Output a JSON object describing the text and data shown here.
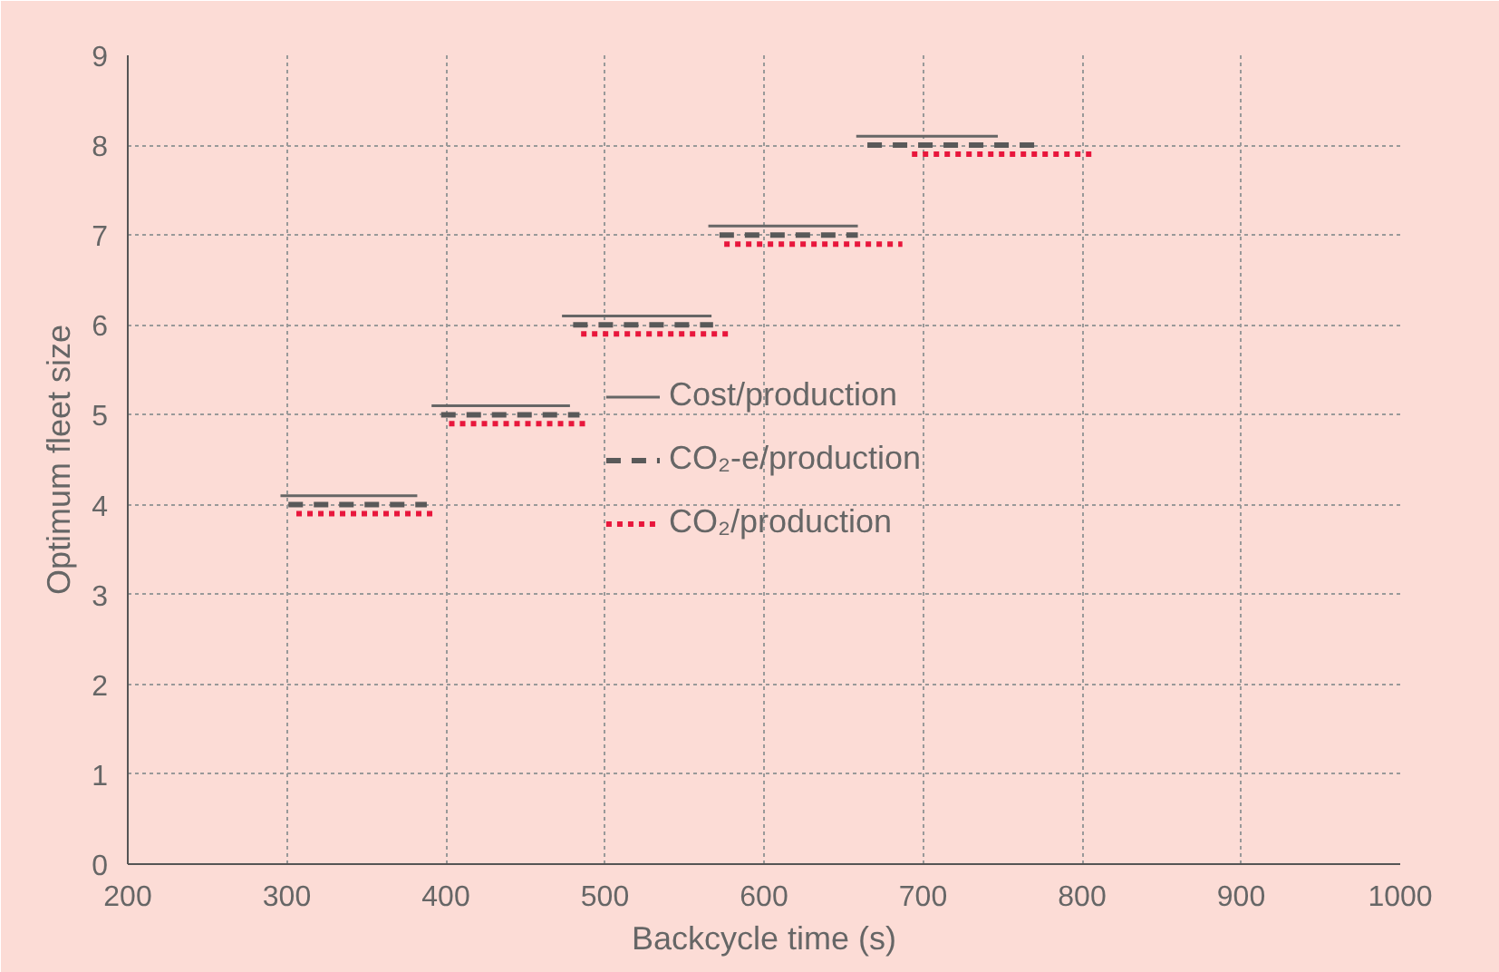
{
  "chart_data": {
    "type": "line",
    "xlabel": "Backcycle time (s)",
    "ylabel": "Optimum fleet size",
    "xlim": [
      200,
      1000
    ],
    "xticks": [
      200,
      300,
      400,
      500,
      600,
      700,
      800,
      900,
      1000
    ],
    "ylim": [
      0,
      9
    ],
    "yticks": [
      0,
      1,
      2,
      3,
      4,
      5,
      6,
      7,
      8,
      9
    ],
    "grid": true,
    "legend": "center",
    "marker": "none",
    "series": [
      {
        "name": "Cost/production",
        "color": "#666666",
        "line_style": "solid",
        "x": [
          296,
          382,
          null,
          391,
          478,
          null,
          473,
          567,
          null,
          565,
          659,
          null,
          658,
          747
        ],
        "values": [
          4.1,
          4.1,
          null,
          5.1,
          5.1,
          null,
          6.1,
          6.1,
          null,
          7.1,
          7.1,
          null,
          8.1,
          8.1
        ]
      },
      {
        "name": "CO₂-e/production",
        "color": "#595959",
        "line_style": "dashed",
        "x": [
          301,
          388,
          null,
          397,
          484,
          null,
          480,
          568,
          null,
          572,
          659,
          null,
          665,
          773
        ],
        "values": [
          4.0,
          4.0,
          null,
          5.0,
          5.0,
          null,
          6.0,
          6.0,
          null,
          7.0,
          7.0,
          null,
          8.0,
          8.0
        ]
      },
      {
        "name": "CO₂/production",
        "color": "#e8173c",
        "line_style": "dotted",
        "x": [
          306,
          393,
          null,
          402,
          488,
          null,
          485,
          578,
          null,
          575,
          687,
          null,
          693,
          806
        ],
        "values": [
          3.9,
          3.9,
          null,
          4.9,
          4.9,
          null,
          5.9,
          5.9,
          null,
          6.9,
          6.9,
          null,
          7.9,
          7.9
        ]
      }
    ]
  }
}
